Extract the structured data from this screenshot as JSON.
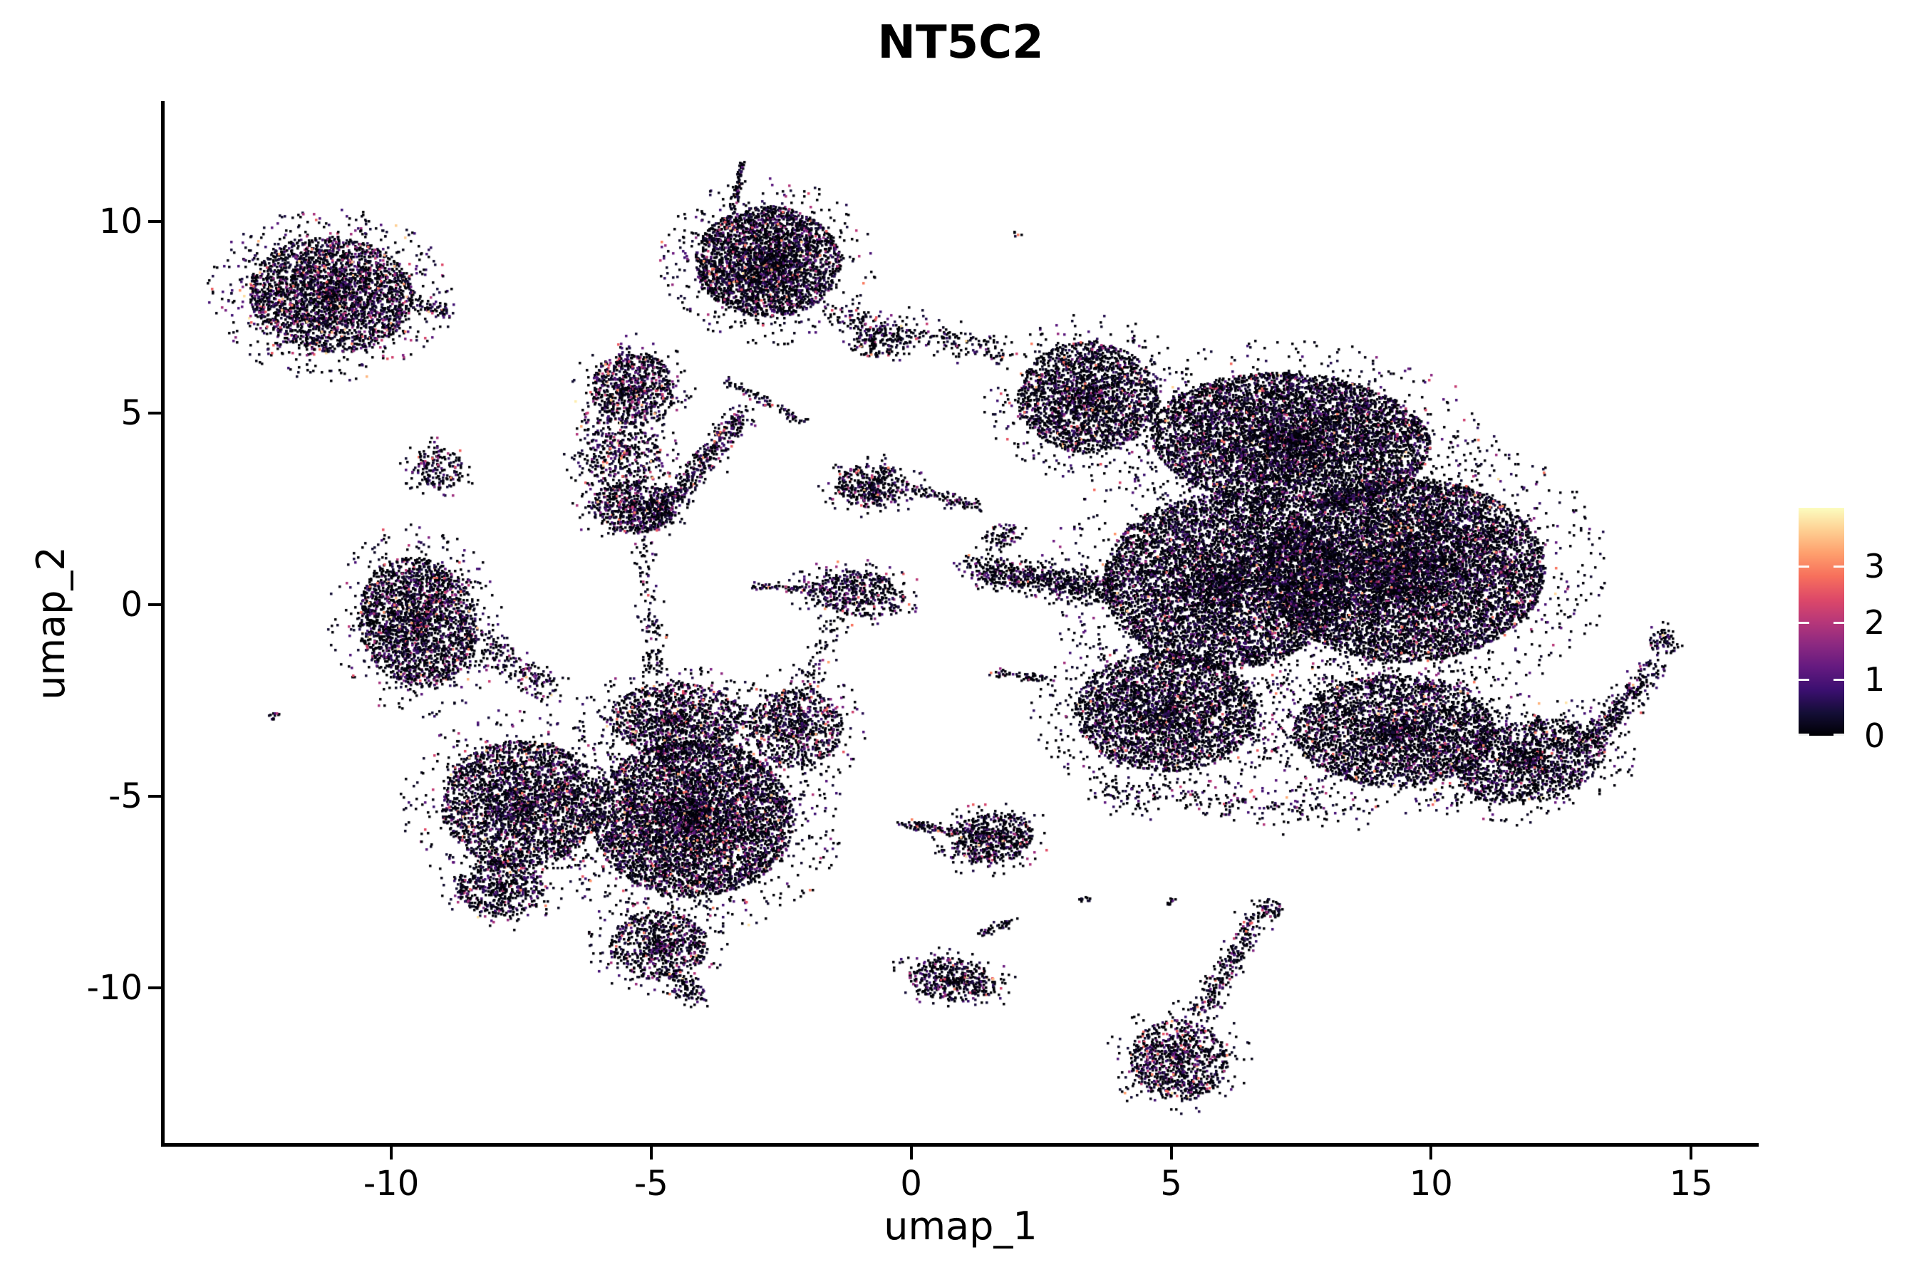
{
  "colors": {
    "background": "#ffffff",
    "axis": "#000000",
    "text": "#000000",
    "colorbar_tick": "#ffffff"
  },
  "chart_data": {
    "type": "scatter",
    "title": "NT5C2",
    "xlabel": "umap_1",
    "ylabel": "umap_2",
    "x_ticks": [
      -10,
      -5,
      0,
      5,
      10,
      15
    ],
    "y_ticks": [
      -10,
      -5,
      0,
      5,
      10
    ],
    "xlim": [
      -14.4,
      16.3
    ],
    "ylim": [
      -14.15,
      13.15
    ],
    "grid": false,
    "legend_position": "right",
    "marker": "square",
    "marker_size_px": 3.5,
    "colorbar": {
      "ticks": [
        0,
        1,
        2,
        3
      ],
      "vmin": 0,
      "vmax": 4.03,
      "colormap": "magma",
      "stops": [
        "#000004",
        "#140E36",
        "#3B0F70",
        "#641A80",
        "#8C2981",
        "#B73779",
        "#DE4968",
        "#F7705C",
        "#FE9F6D",
        "#FECF92",
        "#FCFDBF"
      ]
    },
    "clusters": [
      {
        "name": "topleft-body",
        "type": "blob",
        "cx": -11.15,
        "cy": 8.1,
        "rx": 1.6,
        "ry": 1.5,
        "rot": -0.3,
        "count": 3200,
        "bright": 0.45,
        "halo": 0.1
      },
      {
        "name": "topleft-right-wisp",
        "type": "streak",
        "x1": -9.6,
        "y1": 7.9,
        "x2": -8.9,
        "y2": 7.6,
        "w": 0.18,
        "count": 60,
        "bright": 0.2
      },
      {
        "name": "topmid-body",
        "type": "blob",
        "cx": -2.75,
        "cy": 8.95,
        "rx": 1.4,
        "ry": 1.45,
        "rot": 0.2,
        "count": 3300,
        "bright": 0.22,
        "halo": 0.07
      },
      {
        "name": "topmid-spike",
        "type": "streak",
        "x1": -3.4,
        "y1": 10.3,
        "x2": -3.25,
        "y2": 11.55,
        "w": 0.1,
        "count": 70,
        "bright": 0.1
      },
      {
        "name": "topmid-left-tail",
        "type": "streak",
        "x1": -3.6,
        "y1": 5.9,
        "x2": -2.05,
        "y2": 4.75,
        "w": 0.15,
        "count": 90,
        "bright": 0.15
      },
      {
        "name": "knob-right-of-topmid",
        "type": "blob",
        "cx": -0.65,
        "cy": 6.85,
        "rx": 0.55,
        "ry": 0.4,
        "rot": 0,
        "count": 170,
        "bright": 0.15,
        "halo": 0.1
      },
      {
        "name": "topmid-bridge",
        "type": "streak",
        "x1": -1.5,
        "y1": 7.55,
        "x2": 1.75,
        "y2": 6.6,
        "w": 0.45,
        "count": 260,
        "bright": 0.2
      },
      {
        "name": "speck-top",
        "type": "blob",
        "cx": 2.05,
        "cy": 9.7,
        "rx": 0.1,
        "ry": 0.12,
        "rot": 0,
        "count": 5,
        "bright": 0,
        "halo": 0
      },
      {
        "name": "small-left-blob",
        "type": "blob",
        "cx": -9.1,
        "cy": 3.55,
        "rx": 0.5,
        "ry": 0.55,
        "rot": 0,
        "count": 200,
        "bright": 0.25,
        "halo": 0.15
      },
      {
        "name": "tall-top-knob",
        "type": "blob",
        "cx": -5.35,
        "cy": 5.6,
        "rx": 0.8,
        "ry": 1.0,
        "rot": 0,
        "count": 900,
        "bright": 0.65,
        "halo": 0.08
      },
      {
        "name": "tall-mid",
        "type": "blob",
        "cx": -5.55,
        "cy": 3.9,
        "rx": 0.75,
        "ry": 0.85,
        "rot": 0,
        "count": 420,
        "bright": 0.5,
        "halo": 0.2
      },
      {
        "name": "tall-bottom",
        "type": "blob",
        "cx": -5.35,
        "cy": 2.55,
        "rx": 0.8,
        "ry": 0.7,
        "rot": 0,
        "count": 650,
        "bright": 0.45,
        "halo": 0.1
      },
      {
        "name": "diag-band",
        "type": "streak",
        "x1": -5.0,
        "y1": 2.1,
        "x2": -3.25,
        "y2": 5.0,
        "w": 0.3,
        "count": 500,
        "bright": 0.35
      },
      {
        "name": "below-tall-trickle",
        "type": "streak",
        "x1": -5.15,
        "y1": 1.5,
        "x2": -4.85,
        "y2": -1.9,
        "w": 0.3,
        "count": 130,
        "bright": 0.2
      },
      {
        "name": "left-cluster",
        "type": "blob",
        "cx": -9.5,
        "cy": -0.45,
        "rx": 1.15,
        "ry": 1.7,
        "rot": 0.1,
        "count": 2500,
        "bright": 0.35,
        "halo": 0.08
      },
      {
        "name": "left-cluster-bridge",
        "type": "streak",
        "x1": -8.4,
        "y1": -0.9,
        "x2": -6.9,
        "y2": -2.3,
        "w": 0.5,
        "count": 220,
        "bright": 0.2
      },
      {
        "name": "tiny-speck-left",
        "type": "blob",
        "cx": -12.2,
        "cy": -2.9,
        "rx": 0.16,
        "ry": 0.12,
        "rot": 0,
        "count": 12,
        "bright": 0,
        "halo": 0
      },
      {
        "name": "central-left-lobe",
        "type": "blob",
        "cx": -7.5,
        "cy": -5.2,
        "rx": 1.55,
        "ry": 1.65,
        "rot": 0,
        "count": 3000,
        "bright": 0.3,
        "halo": 0.07
      },
      {
        "name": "central-left-knob",
        "type": "blob",
        "cx": -7.9,
        "cy": -7.4,
        "rx": 0.85,
        "ry": 0.75,
        "rot": 0,
        "count": 600,
        "bright": 0.3,
        "halo": 0.08
      },
      {
        "name": "central-main",
        "type": "blob",
        "cx": -4.2,
        "cy": -5.6,
        "rx": 1.95,
        "ry": 2.05,
        "rot": 0,
        "count": 6000,
        "bright": 0.3,
        "halo": 0.08
      },
      {
        "name": "central-top",
        "type": "blob",
        "cx": -4.5,
        "cy": -3.0,
        "rx": 1.3,
        "ry": 0.95,
        "rot": 0,
        "count": 1300,
        "bright": 0.3,
        "halo": 0.1
      },
      {
        "name": "central-tongue",
        "type": "blob",
        "cx": -4.85,
        "cy": -8.9,
        "rx": 0.95,
        "ry": 0.9,
        "rot": 0,
        "count": 800,
        "bright": 0.3,
        "halo": 0.08
      },
      {
        "name": "central-tongue-trail",
        "type": "streak",
        "x1": -4.6,
        "y1": -9.6,
        "x2": -4.1,
        "y2": -10.35,
        "w": 0.3,
        "count": 110,
        "bright": 0.2
      },
      {
        "name": "arrow-cluster",
        "type": "blob",
        "cx": -1.05,
        "cy": 0.3,
        "rx": 0.95,
        "ry": 0.6,
        "rot": -0.15,
        "count": 520,
        "bright": 0.35,
        "halo": 0.12
      },
      {
        "name": "arrow-left-spike",
        "type": "streak",
        "x1": -3.05,
        "y1": 0.5,
        "x2": -1.9,
        "y2": 0.38,
        "w": 0.08,
        "count": 60,
        "bright": 0.2
      },
      {
        "name": "arrow-down-wisp",
        "type": "streak",
        "x1": -1.4,
        "y1": -0.4,
        "x2": -2.05,
        "y2": -2.1,
        "w": 0.35,
        "count": 70,
        "bright": 0.15
      },
      {
        "name": "blob-m32",
        "type": "blob",
        "cx": -2.2,
        "cy": -3.2,
        "rx": 0.9,
        "ry": 1.05,
        "rot": 0,
        "count": 850,
        "bright": 0.4,
        "halo": 0.1
      },
      {
        "name": "mid-blob-33",
        "type": "blob",
        "cx": -0.75,
        "cy": 3.1,
        "rx": 0.7,
        "ry": 0.55,
        "rot": 0,
        "count": 420,
        "bright": 0.3,
        "halo": 0.1
      },
      {
        "name": "mid-string",
        "type": "streak",
        "x1": -0.05,
        "y1": 3.05,
        "x2": 1.3,
        "y2": 2.55,
        "w": 0.18,
        "count": 90,
        "bright": 0.2
      },
      {
        "name": "mid-clump-17",
        "type": "blob",
        "cx": 1.75,
        "cy": 1.8,
        "rx": 0.35,
        "ry": 0.3,
        "rot": 0,
        "count": 70,
        "bright": 0.2,
        "halo": 0.1
      },
      {
        "name": "right-topleft-lobe",
        "type": "blob",
        "cx": 3.4,
        "cy": 5.4,
        "rx": 1.35,
        "ry": 1.45,
        "rot": 0,
        "count": 2400,
        "bright": 0.12,
        "halo": 0.08
      },
      {
        "name": "right-top-main",
        "type": "blob",
        "cx": 7.3,
        "cy": 4.3,
        "rx": 2.7,
        "ry": 1.75,
        "rot": -0.1,
        "count": 7000,
        "bright": 0.1,
        "halo": 0.05
      },
      {
        "name": "right-main",
        "type": "blob",
        "cx": 9.5,
        "cy": 0.9,
        "rx": 2.7,
        "ry": 2.4,
        "rot": 0,
        "count": 10000,
        "bright": 0.12,
        "halo": 0.05
      },
      {
        "name": "right-center",
        "type": "blob",
        "cx": 6.0,
        "cy": 0.6,
        "rx": 2.3,
        "ry": 2.3,
        "rot": 0,
        "count": 7000,
        "bright": 0.12,
        "halo": 0.05
      },
      {
        "name": "right-left-protrusion",
        "type": "streak",
        "x1": 1.15,
        "y1": 0.95,
        "x2": 3.9,
        "y2": 0.35,
        "w": 0.5,
        "count": 700,
        "bright": 0.15
      },
      {
        "name": "right-bottomleft",
        "type": "blob",
        "cx": 4.9,
        "cy": -2.8,
        "rx": 1.75,
        "ry": 1.55,
        "rot": 0,
        "count": 3500,
        "bright": 0.13,
        "halo": 0.09
      },
      {
        "name": "right-bottomright",
        "type": "blob",
        "cx": 9.3,
        "cy": -3.3,
        "rx": 1.95,
        "ry": 1.45,
        "rot": 0,
        "count": 3500,
        "bright": 0.13,
        "halo": 0.08
      },
      {
        "name": "right-far-bottom",
        "type": "blob",
        "cx": 11.9,
        "cy": -4.1,
        "rx": 1.5,
        "ry": 1.05,
        "rot": 0.35,
        "count": 1700,
        "bright": 0.13,
        "halo": 0.1
      },
      {
        "name": "right-bottom-fringe",
        "type": "streak",
        "x1": 3.6,
        "y1": -4.9,
        "x2": 8.5,
        "y2": -5.4,
        "w": 0.5,
        "count": 250,
        "bright": 0.1
      },
      {
        "name": "right-tail",
        "type": "streak",
        "x1": 12.9,
        "y1": -3.8,
        "x2": 14.3,
        "y2": -1.6,
        "w": 0.35,
        "count": 330,
        "bright": 0.15
      },
      {
        "name": "right-tail-tip",
        "type": "blob",
        "cx": 14.5,
        "cy": -0.95,
        "rx": 0.3,
        "ry": 0.35,
        "rot": 0,
        "count": 70,
        "bright": 0.15,
        "halo": 0.1
      },
      {
        "name": "left-of-mass-dash",
        "type": "streak",
        "x1": 1.55,
        "y1": -1.75,
        "x2": 2.6,
        "y2": -1.95,
        "w": 0.12,
        "count": 55,
        "bright": 0.1
      },
      {
        "name": "lowmid-cluster",
        "type": "blob",
        "cx": 1.55,
        "cy": -6.1,
        "rx": 0.8,
        "ry": 0.65,
        "rot": 0.3,
        "count": 650,
        "bright": 0.25,
        "halo": 0.1
      },
      {
        "name": "lowmid-left-tail",
        "type": "streak",
        "x1": -0.15,
        "y1": -5.7,
        "x2": 0.85,
        "y2": -5.95,
        "w": 0.15,
        "count": 90,
        "bright": 0.15
      },
      {
        "name": "botmid-cluster",
        "type": "blob",
        "cx": 0.8,
        "cy": -9.8,
        "rx": 0.85,
        "ry": 0.55,
        "rot": -0.2,
        "count": 500,
        "bright": 0.3,
        "halo": 0.08
      },
      {
        "name": "botmid-upper-wisp",
        "type": "streak",
        "x1": 1.35,
        "y1": -8.6,
        "x2": 1.95,
        "y2": -8.25,
        "w": 0.12,
        "count": 40,
        "bright": 0.1
      },
      {
        "name": "bottom-cluster-body",
        "type": "blob",
        "cx": 5.15,
        "cy": -11.9,
        "rx": 0.95,
        "ry": 1.05,
        "rot": 0.2,
        "count": 950,
        "bright": 0.45,
        "halo": 0.07
      },
      {
        "name": "bottom-neck",
        "type": "streak",
        "x1": 5.55,
        "y1": -10.85,
        "x2": 6.65,
        "y2": -8.1,
        "w": 0.3,
        "count": 270,
        "bright": 0.25
      },
      {
        "name": "neck-top-clump",
        "type": "blob",
        "cx": 6.85,
        "cy": -7.95,
        "rx": 0.3,
        "ry": 0.25,
        "rot": 0,
        "count": 60,
        "bright": 0.2,
        "halo": 0.1
      },
      {
        "name": "speck-b1",
        "type": "blob",
        "cx": 3.35,
        "cy": -7.7,
        "rx": 0.12,
        "ry": 0.1,
        "rot": 0,
        "count": 10,
        "bright": 0,
        "halo": 0
      },
      {
        "name": "speck-b2",
        "type": "blob",
        "cx": 5.0,
        "cy": -7.75,
        "rx": 0.12,
        "ry": 0.1,
        "rot": 0,
        "count": 10,
        "bright": 0,
        "halo": 0
      }
    ]
  }
}
